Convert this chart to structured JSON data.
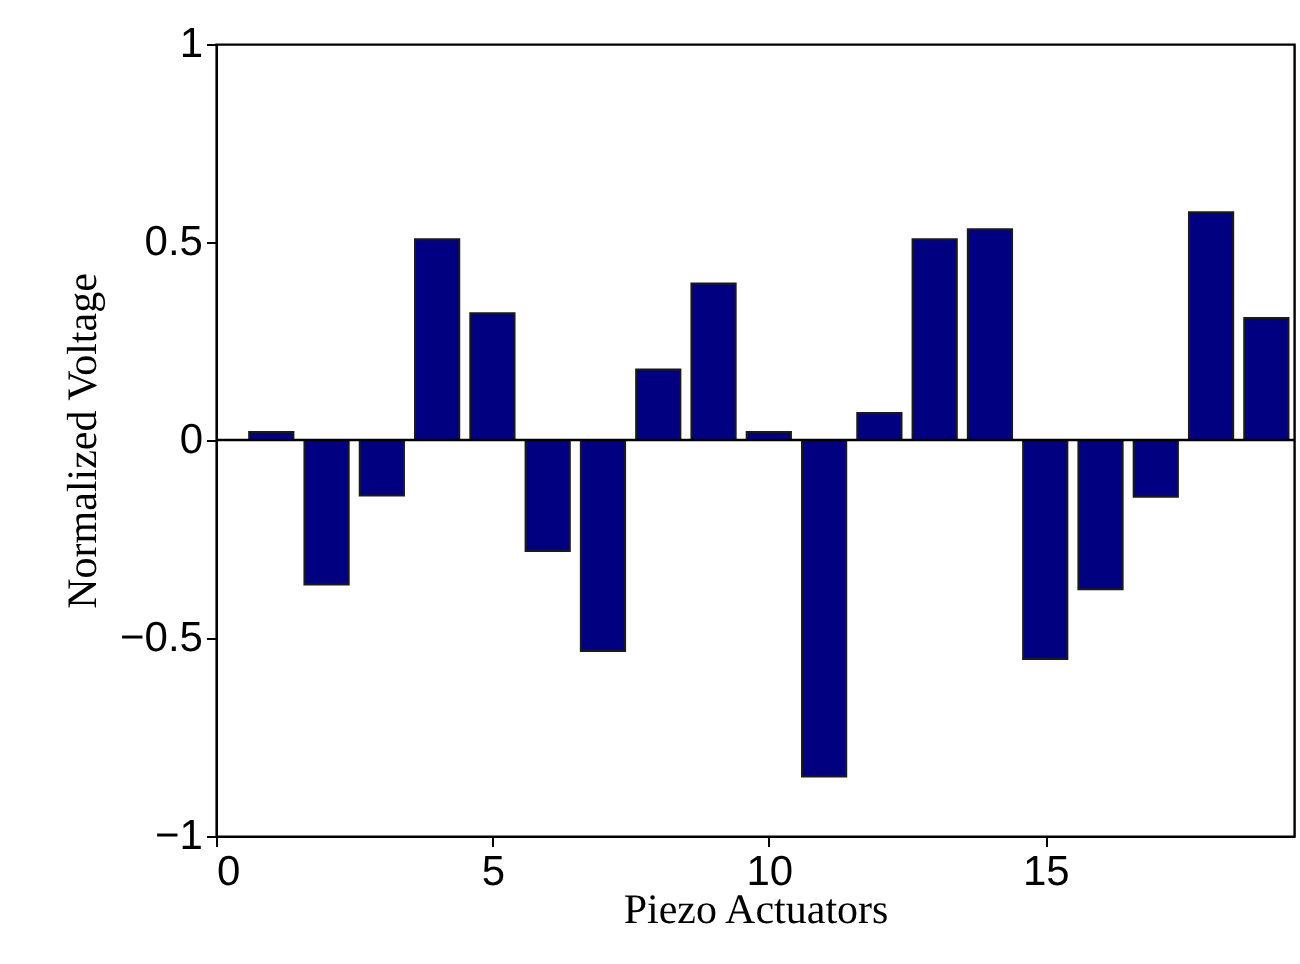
{
  "chart_data": {
    "type": "bar",
    "xlabel": "Piezo Actuators",
    "ylabel": "Normalized Voltage",
    "x": [
      1,
      2,
      3,
      4,
      5,
      6,
      7,
      8,
      9,
      10,
      11,
      12,
      13,
      14,
      15,
      16,
      17,
      18,
      19
    ],
    "series": [
      {
        "color": "#000080",
        "values": [
          0.02,
          -0.365,
          -0.14,
          0.507,
          0.32,
          -0.28,
          -0.533,
          0.178,
          0.395,
          0.02,
          -0.85,
          0.068,
          0.507,
          0.532,
          -0.553,
          -0.377,
          -0.143,
          0.575,
          0.308
        ]
      }
    ],
    "xlim": [
      0,
      19.5
    ],
    "xticks": [
      0,
      5,
      10,
      15
    ],
    "ylim": [
      -1,
      1
    ],
    "yticks": [
      -1,
      -0.5,
      0,
      0.5,
      1
    ],
    "ref_lines": [
      {
        "axis": "y",
        "value": 0,
        "color": "#000000"
      }
    ],
    "grid": false
  }
}
